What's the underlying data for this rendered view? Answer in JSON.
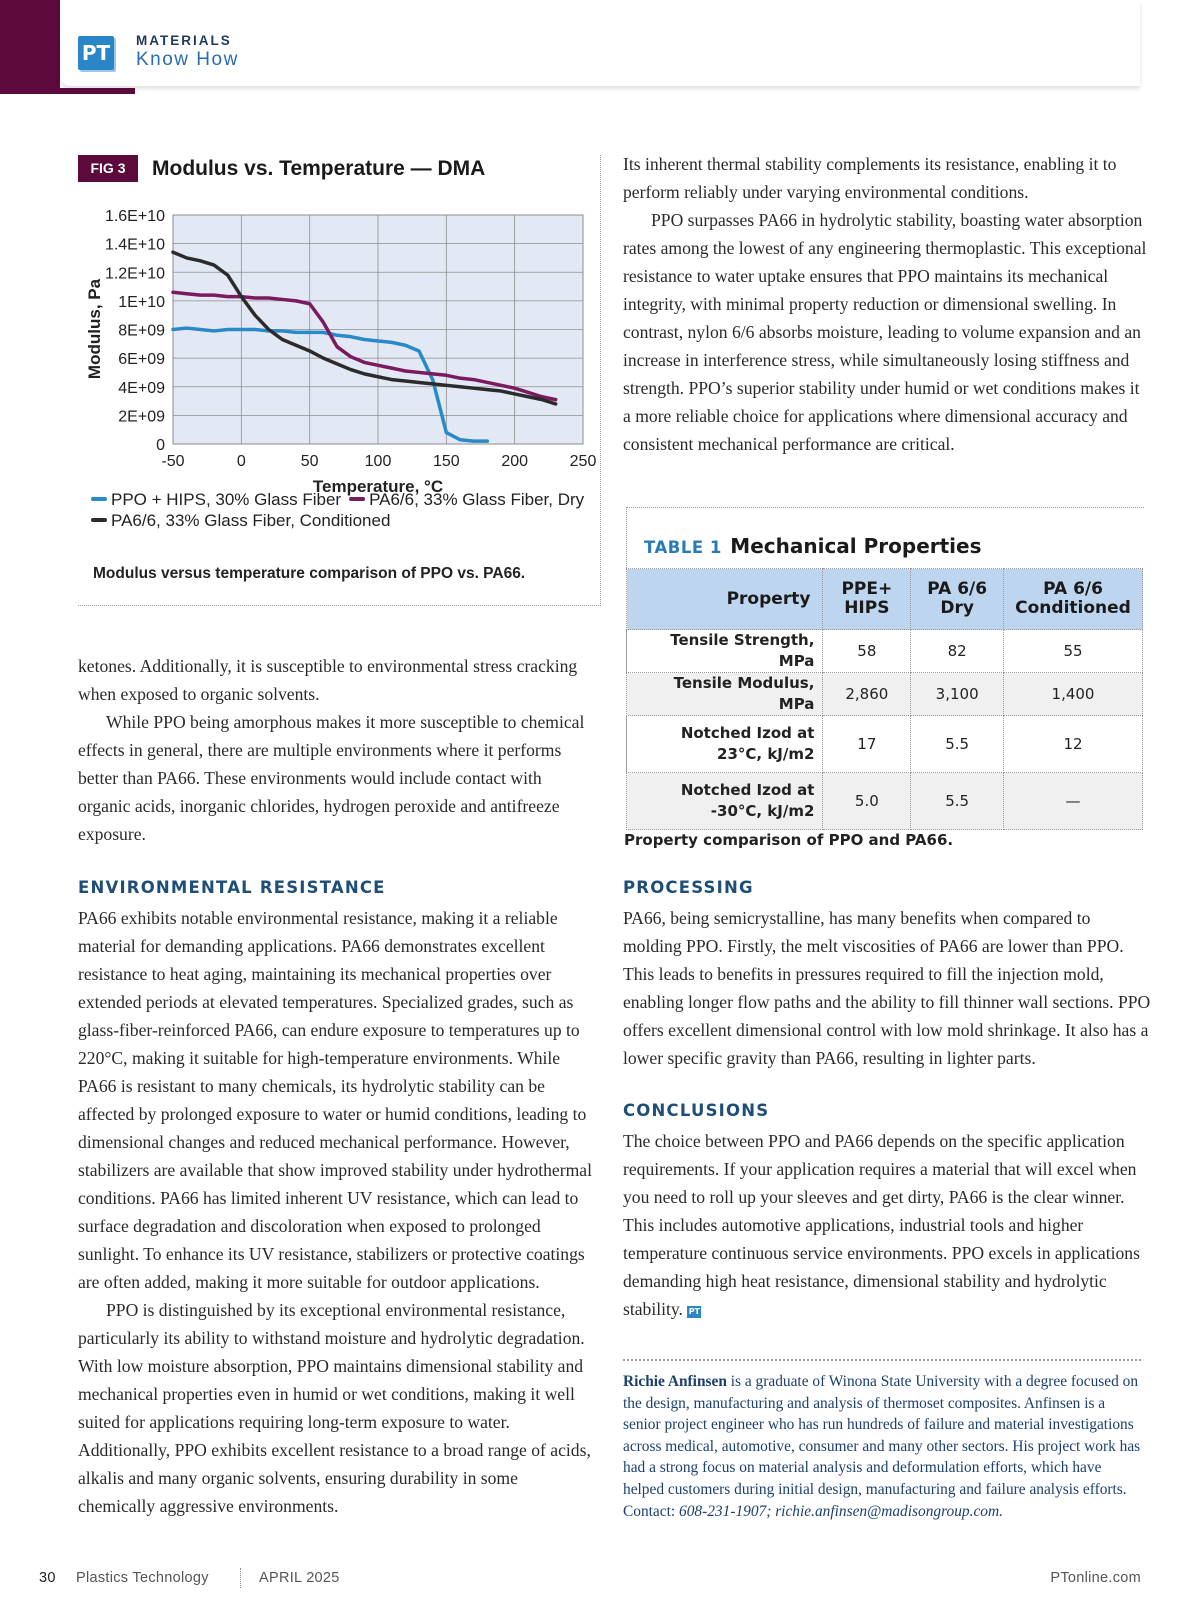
{
  "header": {
    "logo": "PT",
    "section": "MATERIALS",
    "subtitle": "Know How"
  },
  "figure": {
    "label": "FIG 3",
    "caption": "Modulus versus temperature comparison of PPO vs. PA66."
  },
  "chart_data": {
    "type": "line",
    "title": "Modulus vs. Temperature — DMA",
    "x_label": "Temperature, °C",
    "y_label": "Modulus, Pa",
    "x": [
      -50,
      -40,
      -30,
      -20,
      -10,
      0,
      10,
      20,
      30,
      40,
      50,
      60,
      70,
      80,
      90,
      100,
      110,
      120,
      130,
      140,
      150,
      160,
      170,
      180,
      190,
      200,
      210,
      220,
      230
    ],
    "series": [
      {
        "name": "PPO + HIPS, 30% Glass Fiber",
        "color": "#2a8ac8",
        "values": [
          8000000000.0,
          8100000000.0,
          8000000000.0,
          7900000000.0,
          8000000000.0,
          8000000000.0,
          8000000000.0,
          7900000000.0,
          7900000000.0,
          7800000000.0,
          7800000000.0,
          7800000000.0,
          7600000000.0,
          7500000000.0,
          7300000000.0,
          7200000000.0,
          7100000000.0,
          6900000000.0,
          6500000000.0,
          4500000000.0,
          800000000.0,
          300000000.0,
          200000000.0,
          200000000.0,
          null,
          null,
          null,
          null,
          null
        ]
      },
      {
        "name": "PA6/6, 33% Glass Fiber, Dry",
        "color": "#7b1a5e",
        "values": [
          10600000000.0,
          10500000000.0,
          10400000000.0,
          10400000000.0,
          10300000000.0,
          10300000000.0,
          10200000000.0,
          10200000000.0,
          10100000000.0,
          10000000000.0,
          9800000000.0,
          8500000000.0,
          6800000000.0,
          6100000000.0,
          5700000000.0,
          5500000000.0,
          5300000000.0,
          5100000000.0,
          5000000000.0,
          4900000000.0,
          4800000000.0,
          4600000000.0,
          4500000000.0,
          4300000000.0,
          4100000000.0,
          3900000000.0,
          3600000000.0,
          3300000000.0,
          3100000000.0
        ]
      },
      {
        "name": "PA6/6, 33% Glass Fiber, Conditioned",
        "color": "#2b2b2b",
        "values": [
          13400000000.0,
          13000000000.0,
          12800000000.0,
          12500000000.0,
          11800000000.0,
          10300000000.0,
          9000000000.0,
          8000000000.0,
          7300000000.0,
          6900000000.0,
          6500000000.0,
          6000000000.0,
          5600000000.0,
          5200000000.0,
          4900000000.0,
          4700000000.0,
          4500000000.0,
          4400000000.0,
          4300000000.0,
          4200000000.0,
          4100000000.0,
          4000000000.0,
          3900000000.0,
          3800000000.0,
          3700000000.0,
          3500000000.0,
          3300000000.0,
          3100000000.0,
          2800000000.0
        ]
      }
    ],
    "xlim": [
      -50,
      250
    ],
    "xticks": [
      -50,
      0,
      50,
      100,
      150,
      200,
      250
    ],
    "ylim": [
      0,
      16000000000.0
    ],
    "yticks": [
      0,
      {
        "value": 2000000000.0,
        "label": "2E+09"
      },
      {
        "value": 4000000000.0,
        "label": "4E+09"
      },
      {
        "value": 6000000000.0,
        "label": "6E+09"
      },
      {
        "value": 8000000000.0,
        "label": "8E+09"
      },
      {
        "value": 10000000000.0,
        "label": "1E+10"
      },
      {
        "value": 12000000000.0,
        "label": "1.2E+10"
      },
      {
        "value": 14000000000.0,
        "label": "1.4E+10"
      },
      {
        "value": 16000000000.0,
        "label": "1.6E+10"
      }
    ],
    "grid": true,
    "plot_background": "#e3e8f5"
  },
  "left_column": {
    "intro": [
      "ketones. Additionally, it is susceptible to environmental stress cracking when exposed to organic solvents.",
      "While PPO being amorphous makes it more susceptible to chemical effects in general, there are multiple environments where it performs better than PA66. These environments would include contact with organic acids, inorganic chlorides, hydrogen peroxide and antifreeze exposure."
    ],
    "heading": "ENVIRONMENTAL RESISTANCE",
    "paragraphs": [
      "PA66 exhibits notable environmental resistance, making it a reliable material for demanding applications. PA66 demonstrates excellent resistance to heat aging, maintaining its mechanical properties over extended periods at elevated temperatures. Specialized grades, such as glass-fiber-reinforced PA66, can endure exposure to temperatures up to 220°C, making it suitable for high-temperature environments. While PA66 is resistant to many chemicals, its hydrolytic stability can be affected by prolonged exposure to water or humid conditions, leading to dimensional changes and reduced mechanical performance. However, stabilizers are available that show improved stability under hydrothermal conditions. PA66 has limited inherent UV resistance, which can lead to surface degradation and discoloration when exposed to prolonged sunlight. To enhance its UV resistance, stabilizers or protective coatings are often added, making it more suitable for outdoor applications.",
      "PPO is distinguished by its exceptional environmental resistance, particularly its ability to withstand moisture and hydrolytic degradation. With low moisture absorption, PPO maintains dimensional stability and mechanical properties even in humid or wet conditions, making it well suited for applications requiring long-term exposure to water. Additionally, PPO exhibits excellent resistance to a broad range of acids, alkalis and many organic solvents, ensuring durability in some chemically aggressive environments."
    ]
  },
  "right_column": {
    "intro": [
      "Its inherent thermal stability complements its resistance, enabling it to perform reliably under varying environmental conditions.",
      "PPO surpasses PA66 in hydrolytic stability, boasting water absorption rates among the lowest of any engineering thermoplastic. This exceptional resistance to water uptake ensures that PPO maintains its mechanical integrity, with minimal property reduction or dimensional swelling. In contrast, nylon 6/6 absorbs moisture, leading to volume expansion and an increase in interference stress, while simultaneously losing stiffness and strength. PPO’s superior stability under humid or wet conditions makes it a more reliable choice for applications where dimensional accuracy and consistent mechanical performance are critical."
    ],
    "processing": {
      "heading": "PROCESSING",
      "text": "PA66, being semicrystalline, has many benefits when compared to molding PPO. Firstly, the melt viscosities of PA66 are lower than PPO. This leads to benefits in pressures required to fill the injection mold, enabling longer flow paths and the ability to fill thinner wall sections. PPO offers excellent dimensional control with low mold shrinkage. It also has a lower specific gravity than PA66, resulting in lighter parts."
    },
    "conclusions": {
      "heading": "CONCLUSIONS",
      "text": "The choice between PPO and PA66 depends on the specific application requirements. If your application requires a material that will excel when you need to roll up your sleeves and get dirty, PA66 is the clear winner. This includes automotive applications, industrial tools and higher temperature continuous service environments. PPO excels in applications demanding high heat resistance, dimensional stability and hydrolytic stability."
    },
    "bio": {
      "name": "Richie Anfinsen",
      "text": "is a graduate of Winona State University with a degree focused on the design, manufacturing and analysis of thermoset composites. Anfinsen is a senior project engineer who has run hundreds of failure and material investigations across medical, automotive, consumer and many other sectors. His project work has had a strong focus on material analysis and deformulation efforts, which have helped customers during initial design, manufacturing and failure analysis efforts. Contact:",
      "contact": "608-231-1907; richie.anfinsen@madisongroup.com."
    }
  },
  "table": {
    "label": "TABLE 1",
    "title": "Mechanical Properties",
    "header": [
      "Property",
      "PPE+\nHIPS",
      "PA 6/6\nDry",
      "PA 6/6\nConditioned"
    ],
    "rows": [
      [
        "Tensile Strength, MPa",
        "58",
        "82",
        "55"
      ],
      [
        "Tensile Modulus, MPa",
        "2,860",
        "3,100",
        "1,400"
      ],
      [
        "Notched Izod at\n23°C, kJ/m2",
        "17",
        "5.5",
        "12"
      ],
      [
        "Notched Izod at\n-30°C, kJ/m2",
        "5.0",
        "5.5",
        "—"
      ]
    ],
    "caption": "Property comparison of PPO and PA66."
  },
  "footer": {
    "page": "30",
    "magazine": "Plastics Technology",
    "issue": "APRIL 2025",
    "site": "PTonline.com"
  }
}
